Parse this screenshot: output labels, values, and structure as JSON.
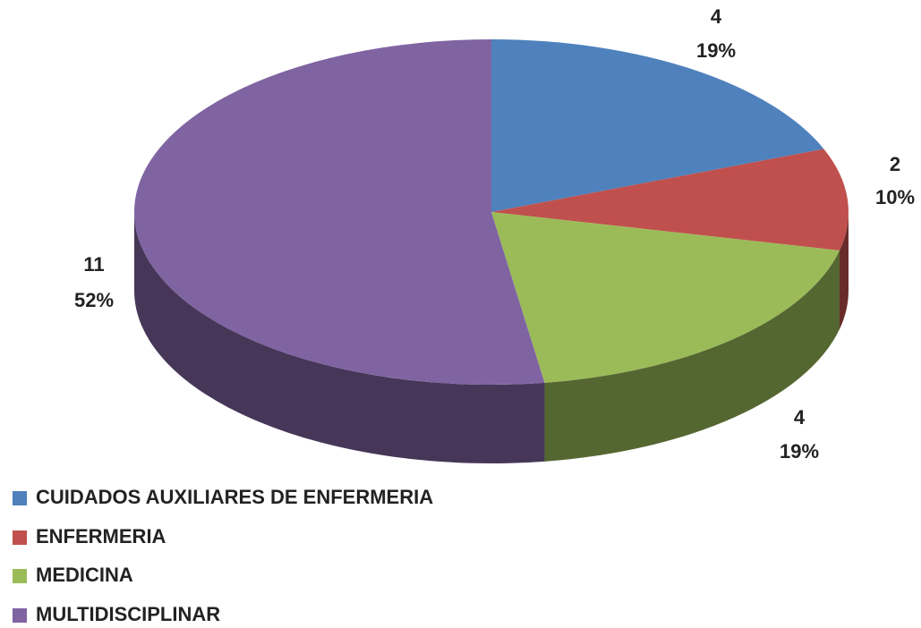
{
  "chart_data": {
    "type": "pie",
    "categories": [
      "CUIDADOS AUXILIARES DE ENFERMERIA",
      "ENFERMERIA",
      "MEDICINA",
      "MULTIDISCIPLINAR"
    ],
    "values": [
      4,
      2,
      4,
      11
    ],
    "percent_labels": [
      "19%",
      "10%",
      "19%",
      "52%"
    ],
    "colors": [
      "#4f81bd",
      "#c0504d",
      "#9bbb59",
      "#8064a2"
    ],
    "legend": "bottom-left"
  }
}
